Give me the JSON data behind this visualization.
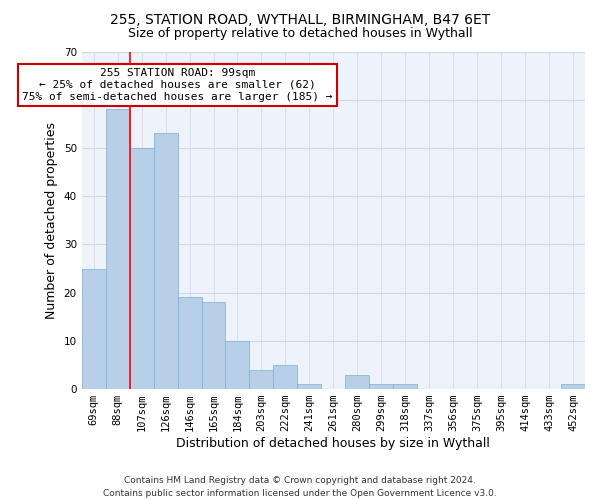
{
  "title_line1": "255, STATION ROAD, WYTHALL, BIRMINGHAM, B47 6ET",
  "title_line2": "Size of property relative to detached houses in Wythall",
  "xlabel": "Distribution of detached houses by size in Wythall",
  "ylabel": "Number of detached properties",
  "categories": [
    "69sqm",
    "88sqm",
    "107sqm",
    "126sqm",
    "146sqm",
    "165sqm",
    "184sqm",
    "203sqm",
    "222sqm",
    "241sqm",
    "261sqm",
    "280sqm",
    "299sqm",
    "318sqm",
    "337sqm",
    "356sqm",
    "375sqm",
    "395sqm",
    "414sqm",
    "433sqm",
    "452sqm"
  ],
  "values": [
    25,
    58,
    50,
    53,
    19,
    18,
    10,
    4,
    5,
    1,
    0,
    3,
    1,
    1,
    0,
    0,
    0,
    0,
    0,
    0,
    1
  ],
  "bar_color": "#b8cfe8",
  "bar_edge_color": "#7aafd4",
  "grid_color": "#d0d8e8",
  "background_color": "#eef2fa",
  "annotation_line1": "255 STATION ROAD: 99sqm",
  "annotation_line2": "← 25% of detached houses are smaller (62)",
  "annotation_line3": "75% of semi-detached houses are larger (185) →",
  "annotation_box_color": "#ffffff",
  "annotation_box_edge_color": "#cc0000",
  "red_line_x": 1.5,
  "ylim": [
    0,
    70
  ],
  "yticks": [
    0,
    10,
    20,
    30,
    40,
    50,
    60,
    70
  ],
  "footnote_line1": "Contains HM Land Registry data © Crown copyright and database right 2024.",
  "footnote_line2": "Contains public sector information licensed under the Open Government Licence v3.0.",
  "title_fontsize": 10,
  "subtitle_fontsize": 9,
  "ylabel_fontsize": 9,
  "xlabel_fontsize": 9,
  "tick_fontsize": 7.5,
  "annotation_fontsize": 8,
  "footnote_fontsize": 6.5
}
